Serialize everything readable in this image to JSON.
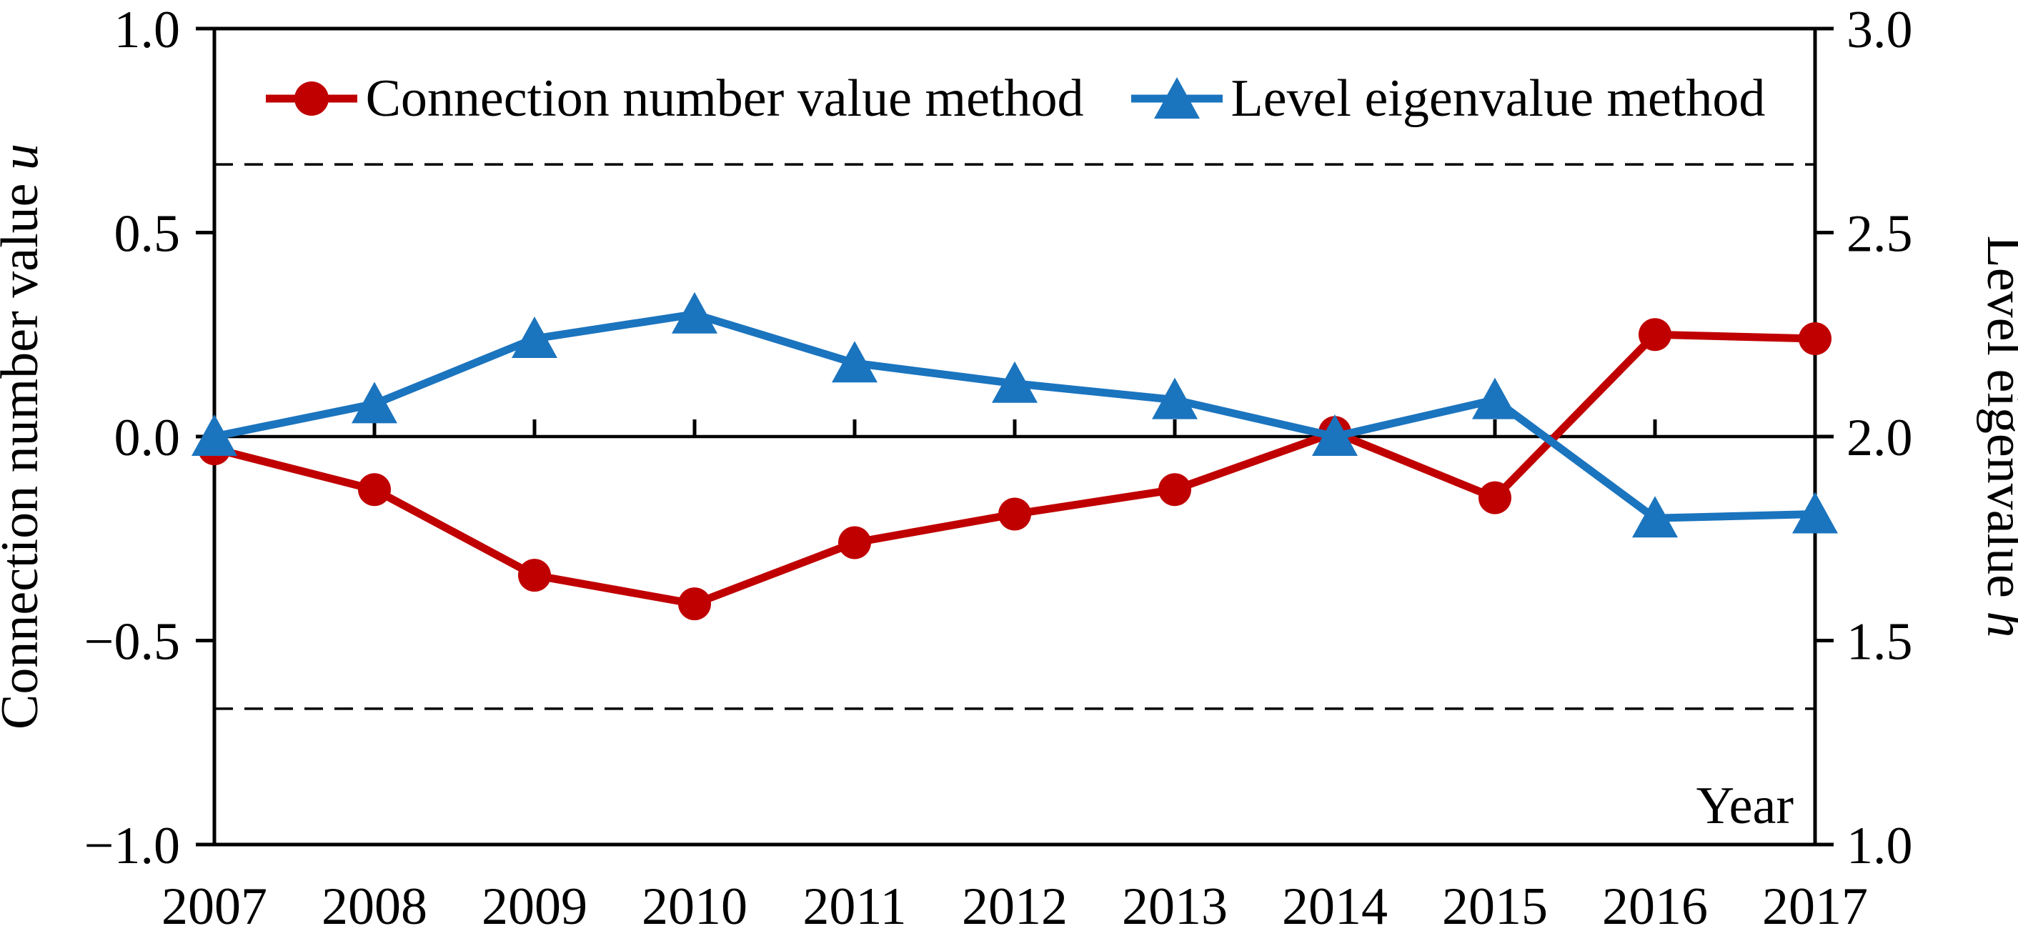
{
  "chart_data": {
    "type": "line",
    "x": [
      2007,
      2008,
      2009,
      2010,
      2011,
      2012,
      2013,
      2014,
      2015,
      2016,
      2017
    ],
    "xlabel": "Year",
    "series": [
      {
        "name": "Connection number value method",
        "axis": "left",
        "color": "#C00000",
        "marker": "circle",
        "values": [
          -0.03,
          -0.13,
          -0.34,
          -0.41,
          -0.26,
          -0.19,
          -0.13,
          0.01,
          -0.15,
          0.25,
          0.24
        ]
      },
      {
        "name": "Level eigenvalue method",
        "axis": "right",
        "color": "#1B74BE",
        "marker": "triangle",
        "values": [
          2.0,
          2.08,
          2.24,
          2.3,
          2.18,
          2.13,
          2.09,
          2.0,
          2.09,
          1.8,
          1.81
        ]
      }
    ],
    "left_axis": {
      "title": "Connection number value",
      "title_var": "u",
      "ticks": [
        "1.0",
        "0.5",
        "0.0",
        "−0.5",
        "−1.0"
      ],
      "range": [
        -1.0,
        1.0
      ]
    },
    "right_axis": {
      "title": "Level eigenvalue",
      "title_var": "h",
      "ticks": [
        "3.0",
        "2.5",
        "2.0",
        "1.5",
        "1.0"
      ],
      "range": [
        1.0,
        3.0
      ]
    },
    "reference_lines": [
      {
        "axis": "left",
        "value": 0.667,
        "style": "dashed"
      },
      {
        "axis": "left",
        "value": 0.0,
        "style": "solid"
      },
      {
        "axis": "left",
        "value": -0.667,
        "style": "dashed"
      }
    ],
    "legend_position": "top-center-inside",
    "grid": false,
    "line_color": "#000000"
  }
}
